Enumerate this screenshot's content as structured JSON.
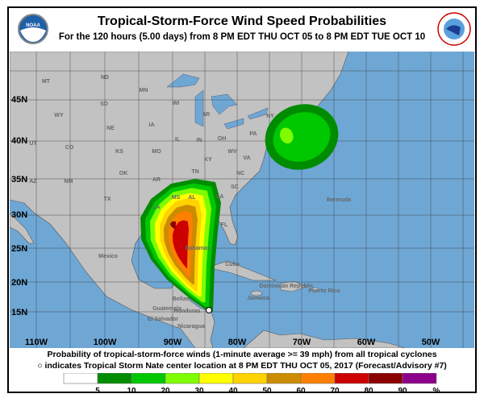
{
  "header": {
    "title": "Tropical-Storm-Force Wind Speed Probabilities",
    "subtitle": "For the 120 hours (5.00 days) from 8 PM EDT THU OCT 05 to 8 PM EDT TUE OCT 10",
    "left_logo": "NOAA",
    "right_logo": "NATIONAL WEATHER SERVICE"
  },
  "map": {
    "lat_labels": [
      "45N",
      "40N",
      "35N",
      "30N",
      "25N",
      "20N",
      "15N"
    ],
    "lon_labels": [
      "110W",
      "100W",
      "90W",
      "80W",
      "70W",
      "60W",
      "50W"
    ],
    "region_labels": [
      "MT",
      "ND",
      "MN",
      "WI",
      "MI",
      "NY",
      "WY",
      "SD",
      "IA",
      "NE",
      "PA",
      "UT",
      "CO",
      "KS",
      "MO",
      "IL",
      "IN",
      "OH",
      "WV",
      "VA",
      "KY",
      "AZ",
      "NM",
      "OK",
      "AR",
      "TN",
      "NC",
      "SC",
      "TX",
      "MS",
      "AL",
      "GA",
      "LA",
      "FL",
      "Bermuda",
      "Mexico",
      "Bahamas",
      "Cuba",
      "Jamaica",
      "Dominican Republic",
      "Puerto Rico",
      "Belize",
      "Guatemala",
      "Honduras",
      "El Salvador",
      "Nicaragua"
    ],
    "storm_center": "Tropical Storm Nate center",
    "colors": {
      "land": "#c2c2c2",
      "ocean": "#6fa7d4",
      "border": "#555555"
    }
  },
  "footer": {
    "line1": "Probability of tropical-storm-force winds (1-minute average >= 39 mph) from all tropical cyclones",
    "line2": "indicates Tropical Storm Nate center location at 8 PM EDT THU OCT 05, 2017 (Forecast/Advisory #7)"
  },
  "legend": {
    "labels": [
      "5",
      "10",
      "20",
      "30",
      "40",
      "50",
      "60",
      "70",
      "80",
      "90",
      "%"
    ],
    "colors": [
      "#ffffff",
      "#008c00",
      "#00c800",
      "#7ffd00",
      "#ffff00",
      "#ffd200",
      "#cc8c00",
      "#ff8000",
      "#cc0000",
      "#8c0000",
      "#8c008c"
    ]
  }
}
